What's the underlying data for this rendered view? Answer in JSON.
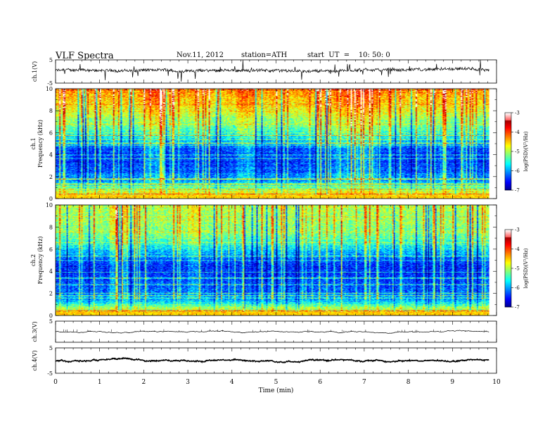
{
  "header": {
    "title": "VLF Spectra",
    "date": "Nov.11, 2012",
    "station": "station=ATH",
    "start": "start  UT  =    10: 50: 0"
  },
  "chart_data": [
    {
      "type": "line",
      "title": "ch.1(V)",
      "ylabel": "ch.1(V)",
      "ylim": [
        -5,
        5
      ],
      "yticks": [
        "5",
        "-5"
      ],
      "xlim": [
        0,
        10
      ],
      "x_extent_min": 9.83,
      "baseline_v": 0.4,
      "noise_amp_v": 1.2
    },
    {
      "type": "heatmap",
      "title": "ch.1",
      "ylabel": "ch.1 Frequency  (kHz)",
      "ylim": [
        0,
        10
      ],
      "yticks": [
        "0",
        "2",
        "4",
        "6",
        "8",
        "10"
      ],
      "xlim": [
        0,
        10
      ],
      "x_extent_min": 9.83,
      "colorbar": {
        "label": "log(PSD)(V²/Hz)",
        "range": [
          -7,
          -3
        ],
        "ticks": [
          "-3",
          "-4",
          "-5",
          "-6",
          "-7"
        ]
      },
      "profile_khz_logpsd": [
        [
          0,
          -4.3
        ],
        [
          0.6,
          -4.6
        ],
        [
          1.5,
          -5.8
        ],
        [
          3,
          -6.3
        ],
        [
          4.5,
          -6.2
        ],
        [
          5.5,
          -5.6
        ],
        [
          6.5,
          -5.1
        ],
        [
          7.5,
          -4.8
        ],
        [
          8.5,
          -4.4
        ],
        [
          10,
          -4.1
        ]
      ],
      "high_activity_min": [
        [
          6.3,
          7.3
        ],
        [
          2.0,
          2.5
        ],
        [
          4.1,
          4.5
        ]
      ]
    },
    {
      "type": "heatmap",
      "title": "ch.2",
      "ylabel": "ch.2 Frequency  (kHz)",
      "ylim": [
        0,
        10
      ],
      "yticks": [
        "0",
        "2",
        "4",
        "6",
        "8",
        "10"
      ],
      "xlim": [
        0,
        10
      ],
      "x_extent_min": 9.83,
      "colorbar": {
        "label": "log(PSD)(V²/Hz)",
        "range": [
          -7,
          -3
        ],
        "ticks": [
          "-3",
          "-4",
          "-5",
          "-6",
          "-7"
        ]
      },
      "profile_khz_logpsd": [
        [
          0,
          -4.6
        ],
        [
          0.7,
          -4.8
        ],
        [
          1.5,
          -5.9
        ],
        [
          3,
          -6.2
        ],
        [
          4.5,
          -6.4
        ],
        [
          5.5,
          -5.9
        ],
        [
          6.5,
          -5.4
        ],
        [
          7.5,
          -5.0
        ],
        [
          8.5,
          -4.9
        ],
        [
          10,
          -4.8
        ]
      ],
      "high_activity_min": [
        [
          1.2,
          1.6
        ],
        [
          3.0,
          3.3
        ]
      ]
    },
    {
      "type": "line",
      "title": "ch.3(V)",
      "ylabel": "ch.3(V)",
      "ylim": [
        -5,
        5
      ],
      "yticks": [
        "5"
      ],
      "xlim": [
        0,
        10
      ],
      "x_extent_min": 9.83,
      "baseline_v": 0
    },
    {
      "type": "line",
      "title": "ch.4(V)",
      "ylabel": "ch.4(V)",
      "ylim": [
        -5,
        5
      ],
      "yticks": [
        "5",
        "-5"
      ],
      "xlim": [
        0,
        10
      ],
      "x_extent_min": 9.83,
      "baseline_v": 0,
      "noise_amp_v": 0.35
    }
  ],
  "xaxis": {
    "label": "Time  (min)",
    "ticks": [
      "0",
      "1",
      "2",
      "3",
      "4",
      "5",
      "6",
      "7",
      "8",
      "9",
      "10"
    ],
    "range": [
      0,
      10
    ]
  },
  "colors": {
    "trace": "#000000",
    "background": "#ffffff"
  }
}
